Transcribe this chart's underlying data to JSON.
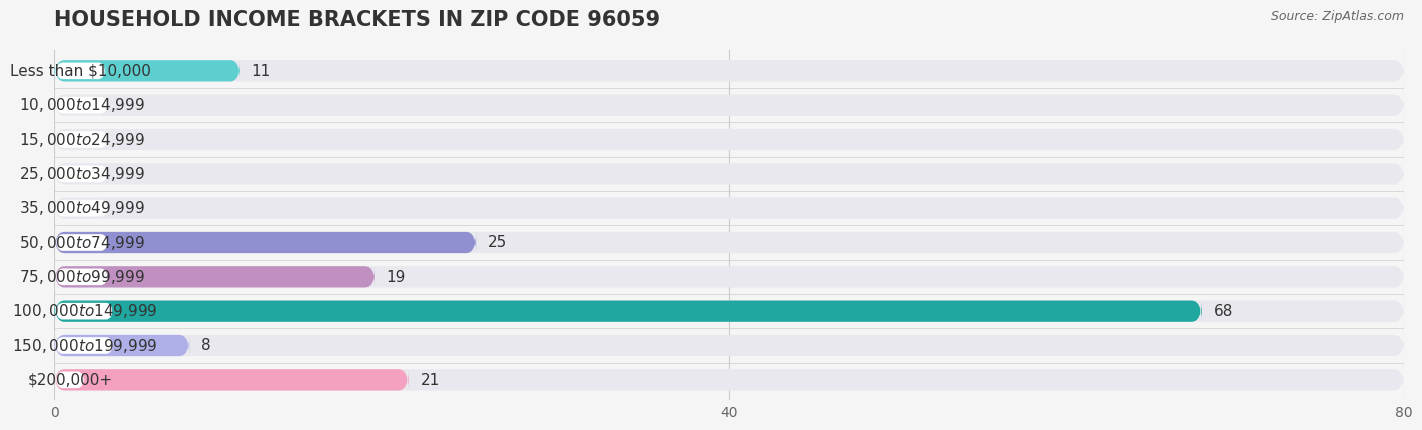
{
  "title": "HOUSEHOLD INCOME BRACKETS IN ZIP CODE 96059",
  "source": "Source: ZipAtlas.com",
  "categories": [
    "Less than $10,000",
    "$10,000 to $14,999",
    "$15,000 to $24,999",
    "$25,000 to $34,999",
    "$35,000 to $49,999",
    "$50,000 to $74,999",
    "$75,000 to $99,999",
    "$100,000 to $149,999",
    "$150,000 to $199,999",
    "$200,000+"
  ],
  "values": [
    11,
    0,
    0,
    0,
    0,
    25,
    19,
    68,
    8,
    21
  ],
  "bar_colors": [
    "#5ecfcf",
    "#a8a8d8",
    "#f4a0b0",
    "#f5c897",
    "#f4a080",
    "#9090d0",
    "#c090c0",
    "#20a8a0",
    "#b0b0e8",
    "#f4a0c0"
  ],
  "label_colors": [
    "#5ecfcf",
    "#a8a8d8",
    "#f4a0b0",
    "#f5c897",
    "#f4a080",
    "#9090d0",
    "#c090c0",
    "#20a8a0",
    "#b0b0e8",
    "#f4a0c0"
  ],
  "background_color": "#f5f5f5",
  "bar_background_color": "#e8e8ee",
  "xlim": [
    0,
    80
  ],
  "xticks": [
    0,
    40,
    80
  ],
  "title_fontsize": 15,
  "label_fontsize": 11,
  "value_fontsize": 11,
  "bar_height": 0.62,
  "fig_width": 14.06,
  "fig_height": 4.49
}
